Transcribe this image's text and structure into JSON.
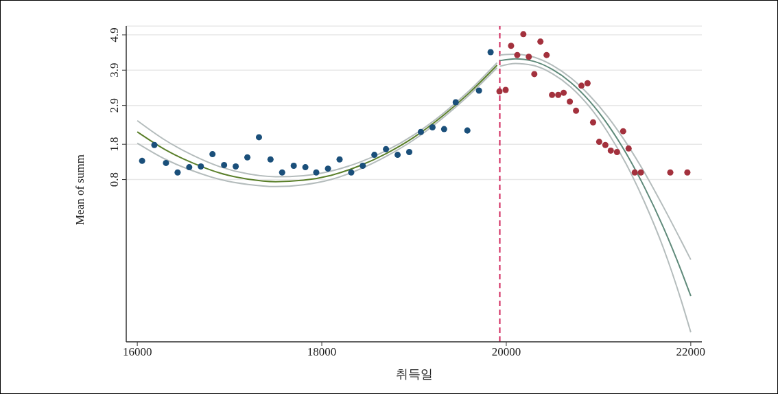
{
  "chart_data": {
    "type": "scatter",
    "xlabel": "취득일",
    "ylabel": "Mean of summ",
    "xlim": [
      15880,
      22120
    ],
    "xticks": [
      16000,
      18000,
      20000,
      22000
    ],
    "ylim": [
      -3.8,
      5.15
    ],
    "yticks": [
      0.8,
      1.8,
      2.9,
      3.9,
      4.9
    ],
    "grid": "y",
    "marker": "circle",
    "ref_lines": [
      {
        "axis": "x",
        "value": 19930,
        "color": "#d0245a",
        "line_style": "dashed"
      }
    ],
    "series": [
      {
        "color": "#1a4f7a",
        "x": [
          16052,
          16185,
          16311,
          16437,
          16563,
          16689,
          16815,
          16941,
          17067,
          17193,
          17319,
          17444,
          17570,
          17696,
          17822,
          17940,
          18067,
          18193,
          18319,
          18444,
          18570,
          18696,
          18822,
          18948,
          19074,
          19200,
          19326,
          19452,
          19578,
          19704,
          19830
        ],
        "values": [
          1.33,
          1.78,
          1.27,
          1.0,
          1.15,
          1.17,
          1.52,
          1.21,
          1.17,
          1.43,
          2.0,
          1.37,
          1.0,
          1.19,
          1.15,
          1.0,
          1.11,
          1.37,
          1.0,
          1.19,
          1.5,
          1.66,
          1.5,
          1.58,
          2.15,
          2.28,
          2.23,
          2.99,
          2.19,
          3.32,
          4.41
        ]
      },
      {
        "color": "#a3313d",
        "x": [
          19926,
          19993,
          20052,
          20119,
          20185,
          20244,
          20304,
          20370,
          20437,
          20496,
          20563,
          20622,
          20689,
          20756,
          20815,
          20881,
          20941,
          21007,
          21074,
          21133,
          21200,
          21267,
          21326,
          21393,
          21459,
          21778,
          21963
        ],
        "values": [
          3.3,
          3.34,
          4.59,
          4.33,
          4.92,
          4.28,
          3.79,
          4.71,
          4.33,
          3.2,
          3.2,
          3.26,
          3.01,
          2.75,
          3.46,
          3.53,
          2.42,
          1.87,
          1.78,
          1.62,
          1.58,
          2.17,
          1.68,
          1.0,
          1.0,
          1.0,
          1.0
        ]
      },
      {
        "type": "line",
        "marker": "none",
        "color": "#b4bcbc",
        "x": [
          16000,
          16300,
          16600,
          16900,
          17200,
          17500,
          17800,
          18100,
          18400,
          18700,
          19000,
          19300,
          19600,
          19900
        ],
        "values": [
          2.47,
          1.92,
          1.49,
          1.16,
          0.96,
          0.88,
          0.91,
          1.04,
          1.28,
          1.62,
          2.07,
          2.64,
          3.32,
          4.11
        ]
      },
      {
        "type": "line",
        "marker": "none",
        "color": "#b4bcbc",
        "x": [
          16000,
          16300,
          16600,
          16900,
          17200,
          17500,
          17800,
          18100,
          18400,
          18700,
          19000,
          19300,
          19600,
          19900
        ],
        "values": [
          1.83,
          1.38,
          1.05,
          0.8,
          0.66,
          0.6,
          0.65,
          0.8,
          1.08,
          1.46,
          1.93,
          2.52,
          3.2,
          3.97
        ]
      },
      {
        "type": "line",
        "marker": "none",
        "color": "#5a7f2a",
        "x": [
          16000,
          16300,
          16600,
          16900,
          17200,
          17500,
          17800,
          18100,
          18400,
          18700,
          19000,
          19300,
          19600,
          19900
        ],
        "values": [
          2.15,
          1.65,
          1.27,
          0.98,
          0.81,
          0.74,
          0.78,
          0.92,
          1.18,
          1.54,
          2.0,
          2.58,
          3.26,
          4.04
        ]
      },
      {
        "type": "line",
        "marker": "none",
        "color": "#b4bcbc",
        "x": [
          19930,
          20100,
          20300,
          20500,
          20700,
          20900,
          21100,
          21300,
          21500,
          21700,
          21900,
          22000
        ],
        "values": [
          4.33,
          4.35,
          4.27,
          4.04,
          3.68,
          3.19,
          2.58,
          1.84,
          0.99,
          0.04,
          -0.96,
          -1.47
        ]
      },
      {
        "type": "line",
        "marker": "none",
        "color": "#b4bcbc",
        "x": [
          19930,
          20100,
          20300,
          20500,
          20700,
          20900,
          21100,
          21300,
          21500,
          21700,
          21900,
          22000
        ],
        "values": [
          4.01,
          4.09,
          4.03,
          3.8,
          3.42,
          2.87,
          2.14,
          1.24,
          0.15,
          -1.12,
          -2.66,
          -3.53
        ]
      },
      {
        "type": "line",
        "marker": "none",
        "color": "#5f8a7a",
        "x": [
          19930,
          20100,
          20300,
          20500,
          20700,
          20900,
          21100,
          21300,
          21500,
          21700,
          21900,
          22000
        ],
        "values": [
          4.17,
          4.22,
          4.15,
          3.92,
          3.55,
          3.03,
          2.36,
          1.54,
          0.57,
          -0.54,
          -1.81,
          -2.5
        ]
      }
    ]
  }
}
